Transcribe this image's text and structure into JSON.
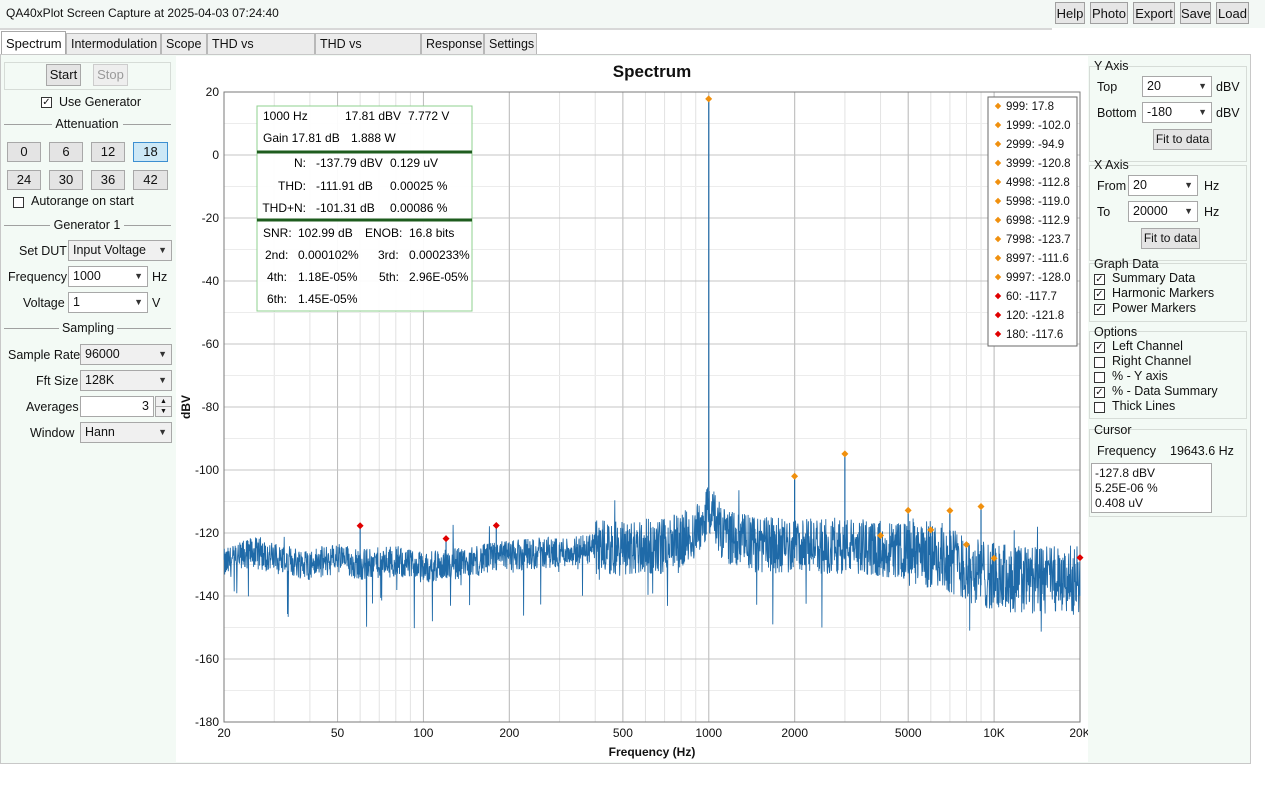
{
  "window": {
    "title": "QA40xPlot Screen Capture at 2025-04-03 07:24:40",
    "buttons": [
      "Help",
      "Photo",
      "Export",
      "Save",
      "Load"
    ]
  },
  "tabs": [
    "Spectrum",
    "Intermodulation",
    "Scope",
    "THD vs Frequency",
    "THD vs Amplitude",
    "Response",
    "Settings"
  ],
  "left": {
    "start_label": "Start",
    "stop_label": "Stop",
    "use_generator_label": "Use Generator",
    "use_generator_checked": true,
    "attenuation_title": "Attenuation",
    "attenuation_values": [
      "0",
      "6",
      "12",
      "18",
      "24",
      "30",
      "36",
      "42"
    ],
    "attenuation_selected": "18",
    "autorange_label": "Autorange on start",
    "generator_title": "Generator 1",
    "set_dut_label": "Set DUT",
    "set_dut_value": "Input Voltage",
    "frequency_label": "Frequency",
    "frequency_value": "1000",
    "frequency_unit": "Hz",
    "voltage_label": "Voltage",
    "voltage_value": "1",
    "voltage_unit": "V",
    "sampling_title": "Sampling",
    "sample_rate_label": "Sample Rate",
    "sample_rate_value": "96000",
    "fft_size_label": "Fft Size",
    "fft_size_value": "128K",
    "averages_label": "Averages",
    "averages_value": "3",
    "window_label": "Window",
    "window_value": "Hann"
  },
  "right": {
    "y_axis_title": "Y Axis",
    "top_label": "Top",
    "top_value": "20",
    "top_unit": "dBV",
    "bottom_label": "Bottom",
    "bottom_value": "-180",
    "bottom_unit": "dBV",
    "fit_label": "Fit to data",
    "x_axis_title": "X Axis",
    "from_label": "From",
    "from_value": "20",
    "from_unit": "Hz",
    "to_label": "To",
    "to_value": "20000",
    "to_unit": "Hz",
    "graph_data_title": "Graph Data",
    "graph_data": [
      {
        "label": "Summary Data",
        "checked": true
      },
      {
        "label": "Harmonic Markers",
        "checked": true
      },
      {
        "label": "Power Markers",
        "checked": true
      }
    ],
    "options_title": "Options",
    "options": [
      {
        "label": "Left Channel",
        "checked": true
      },
      {
        "label": "Right Channel",
        "checked": false
      },
      {
        "label": "% - Y axis",
        "checked": false
      },
      {
        "label": "% - Data Summary",
        "checked": true
      },
      {
        "label": "Thick Lines",
        "checked": false
      }
    ],
    "cursor_title": "Cursor",
    "cursor_freq_label": "Frequency",
    "cursor_freq_value": "19643.6 Hz",
    "cursor_lines": [
      "-127.8 dBV",
      "5.25E-06 %",
      "0.408 uV"
    ]
  },
  "summary": {
    "row1": [
      "1000 Hz",
      "17.81 dBV",
      "7.772 V"
    ],
    "row2": [
      "Gain 17.81 dB",
      "1.888 W"
    ],
    "n_row": [
      "N:",
      "-137.79 dBV",
      "0.129 uV"
    ],
    "thd_row": [
      "THD:",
      "-111.91 dB",
      "0.00025 %"
    ],
    "thdn_row": [
      "THD+N:",
      "-101.31 dB",
      "0.00086 %"
    ],
    "snr_row": [
      "SNR:",
      "102.99 dB",
      "ENOB:",
      "16.8 bits"
    ],
    "h23_row": [
      "2nd:",
      "0.000102%",
      "3rd:",
      "0.000233%"
    ],
    "h45_row": [
      "4th:",
      "1.18E-05%",
      "5th:",
      "2.96E-05%"
    ],
    "h6_row": [
      "6th:",
      "1.45E-05%"
    ]
  },
  "chart_data": {
    "type": "line",
    "title": "Spectrum",
    "xlabel": "Frequency (Hz)",
    "ylabel": "dBV",
    "xscale": "log",
    "xlim": [
      20,
      20000
    ],
    "ylim": [
      -180,
      20
    ],
    "x_ticks": [
      20,
      50,
      100,
      200,
      500,
      1000,
      2000,
      5000,
      10000,
      20000
    ],
    "x_tick_labels": [
      "20",
      "50",
      "100",
      "200",
      "500",
      "1000",
      "2000",
      "5000",
      "10K",
      "20K"
    ],
    "y_ticks": [
      20,
      0,
      -20,
      -40,
      -60,
      -80,
      -100,
      -120,
      -140,
      -160,
      -180
    ],
    "grid": true,
    "line_color": "#1f6aa8",
    "harmonic_color": "#f0900e",
    "power_color": "#e00000",
    "noise_floor": [
      [
        20,
        -130
      ],
      [
        25,
        -126
      ],
      [
        30,
        -128
      ],
      [
        40,
        -130
      ],
      [
        50,
        -128
      ],
      [
        60,
        -130
      ],
      [
        80,
        -129
      ],
      [
        100,
        -131
      ],
      [
        150,
        -129
      ],
      [
        200,
        -127
      ],
      [
        300,
        -126
      ],
      [
        400,
        -125
      ],
      [
        500,
        -125
      ],
      [
        700,
        -124
      ],
      [
        900,
        -120
      ],
      [
        1000,
        -112
      ],
      [
        1100,
        -120
      ],
      [
        1500,
        -124
      ],
      [
        2000,
        -124
      ],
      [
        3000,
        -124
      ],
      [
        4000,
        -125
      ],
      [
        5000,
        -126
      ],
      [
        6000,
        -127
      ],
      [
        7000,
        -128
      ],
      [
        8000,
        -131
      ],
      [
        10000,
        -134
      ],
      [
        15000,
        -135
      ],
      [
        20000,
        -135
      ]
    ],
    "peaks": [
      {
        "x": 1000,
        "y": 17.8
      },
      {
        "x": 1999,
        "y": -102.0
      },
      {
        "x": 2999,
        "y": -94.9
      },
      {
        "x": 3999,
        "y": -120.8
      },
      {
        "x": 4998,
        "y": -112.8
      },
      {
        "x": 5998,
        "y": -119.0
      },
      {
        "x": 6998,
        "y": -112.9
      },
      {
        "x": 7998,
        "y": -123.7
      },
      {
        "x": 8997,
        "y": -111.6
      },
      {
        "x": 9997,
        "y": -128.0
      },
      {
        "x": 60,
        "y": -117.7
      },
      {
        "x": 120,
        "y": -121.8
      },
      {
        "x": 180,
        "y": -117.6
      }
    ],
    "harmonic_markers": [
      {
        "x": 999,
        "y": 17.8,
        "label": "999: 17.8"
      },
      {
        "x": 1999,
        "y": -102.0,
        "label": "1999: -102.0"
      },
      {
        "x": 2999,
        "y": -94.9,
        "label": "2999: -94.9"
      },
      {
        "x": 3999,
        "y": -120.8,
        "label": "3999: -120.8"
      },
      {
        "x": 4998,
        "y": -112.8,
        "label": "4998: -112.8"
      },
      {
        "x": 5998,
        "y": -119.0,
        "label": "5998: -119.0"
      },
      {
        "x": 6998,
        "y": -112.9,
        "label": "6998: -112.9"
      },
      {
        "x": 7998,
        "y": -123.7,
        "label": "7998: -123.7"
      },
      {
        "x": 8997,
        "y": -111.6,
        "label": "8997: -111.6"
      },
      {
        "x": 9997,
        "y": -128.0,
        "label": "9997: -128.0"
      }
    ],
    "power_markers": [
      {
        "x": 60,
        "y": -117.7,
        "label": "60: -117.7"
      },
      {
        "x": 120,
        "y": -121.8,
        "label": "120: -121.8"
      },
      {
        "x": 180,
        "y": -117.6,
        "label": "180: -117.6"
      },
      {
        "x": 20000,
        "y": -127.8,
        "label": ""
      }
    ]
  }
}
